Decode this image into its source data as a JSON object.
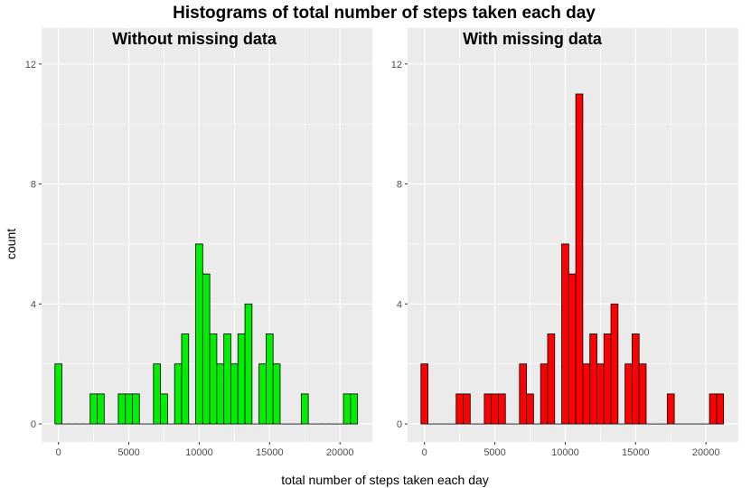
{
  "chart_data": {
    "type": "bar",
    "title": "Histograms of total number of steps taken each day",
    "xlabel": "total number of steps taken each day",
    "ylabel": "count",
    "bin_width": 500,
    "xlim": [
      -1200,
      22300
    ],
    "ylim": [
      -0.6,
      13.2
    ],
    "x_ticks": [
      0,
      5000,
      10000,
      15000,
      20000
    ],
    "y_ticks": [
      0,
      4,
      8,
      12
    ],
    "grid": true,
    "panels": [
      {
        "subtitle": "Without missing data",
        "fill": "#00ee00",
        "bins": [
          {
            "x": 0,
            "count": 2
          },
          {
            "x": 500,
            "count": 0
          },
          {
            "x": 1000,
            "count": 0
          },
          {
            "x": 1500,
            "count": 0
          },
          {
            "x": 2000,
            "count": 0
          },
          {
            "x": 2500,
            "count": 1
          },
          {
            "x": 3000,
            "count": 1
          },
          {
            "x": 3500,
            "count": 0
          },
          {
            "x": 4000,
            "count": 0
          },
          {
            "x": 4500,
            "count": 1
          },
          {
            "x": 5000,
            "count": 1
          },
          {
            "x": 5500,
            "count": 1
          },
          {
            "x": 6000,
            "count": 0
          },
          {
            "x": 6500,
            "count": 0
          },
          {
            "x": 7000,
            "count": 2
          },
          {
            "x": 7500,
            "count": 1
          },
          {
            "x": 8000,
            "count": 0
          },
          {
            "x": 8500,
            "count": 2
          },
          {
            "x": 9000,
            "count": 3
          },
          {
            "x": 9500,
            "count": 0
          },
          {
            "x": 10000,
            "count": 6
          },
          {
            "x": 10500,
            "count": 5
          },
          {
            "x": 11000,
            "count": 3
          },
          {
            "x": 11500,
            "count": 2
          },
          {
            "x": 12000,
            "count": 3
          },
          {
            "x": 12500,
            "count": 2
          },
          {
            "x": 13000,
            "count": 3
          },
          {
            "x": 13500,
            "count": 4
          },
          {
            "x": 14000,
            "count": 0
          },
          {
            "x": 14500,
            "count": 2
          },
          {
            "x": 15000,
            "count": 3
          },
          {
            "x": 15500,
            "count": 2
          },
          {
            "x": 16000,
            "count": 0
          },
          {
            "x": 16500,
            "count": 0
          },
          {
            "x": 17000,
            "count": 0
          },
          {
            "x": 17500,
            "count": 1
          },
          {
            "x": 18000,
            "count": 0
          },
          {
            "x": 18500,
            "count": 0
          },
          {
            "x": 19000,
            "count": 0
          },
          {
            "x": 19500,
            "count": 0
          },
          {
            "x": 20000,
            "count": 0
          },
          {
            "x": 20500,
            "count": 1
          },
          {
            "x": 21000,
            "count": 1
          }
        ]
      },
      {
        "subtitle": "With missing data",
        "fill": "#ff0000",
        "bins": [
          {
            "x": 0,
            "count": 2
          },
          {
            "x": 500,
            "count": 0
          },
          {
            "x": 1000,
            "count": 0
          },
          {
            "x": 1500,
            "count": 0
          },
          {
            "x": 2000,
            "count": 0
          },
          {
            "x": 2500,
            "count": 1
          },
          {
            "x": 3000,
            "count": 1
          },
          {
            "x": 3500,
            "count": 0
          },
          {
            "x": 4000,
            "count": 0
          },
          {
            "x": 4500,
            "count": 1
          },
          {
            "x": 5000,
            "count": 1
          },
          {
            "x": 5500,
            "count": 1
          },
          {
            "x": 6000,
            "count": 0
          },
          {
            "x": 6500,
            "count": 0
          },
          {
            "x": 7000,
            "count": 2
          },
          {
            "x": 7500,
            "count": 1
          },
          {
            "x": 8000,
            "count": 0
          },
          {
            "x": 8500,
            "count": 2
          },
          {
            "x": 9000,
            "count": 3
          },
          {
            "x": 9500,
            "count": 0
          },
          {
            "x": 10000,
            "count": 6
          },
          {
            "x": 10500,
            "count": 5
          },
          {
            "x": 11000,
            "count": 11
          },
          {
            "x": 11500,
            "count": 2
          },
          {
            "x": 12000,
            "count": 3
          },
          {
            "x": 12500,
            "count": 2
          },
          {
            "x": 13000,
            "count": 3
          },
          {
            "x": 13500,
            "count": 4
          },
          {
            "x": 14000,
            "count": 0
          },
          {
            "x": 14500,
            "count": 2
          },
          {
            "x": 15000,
            "count": 3
          },
          {
            "x": 15500,
            "count": 2
          },
          {
            "x": 16000,
            "count": 0
          },
          {
            "x": 16500,
            "count": 0
          },
          {
            "x": 17000,
            "count": 0
          },
          {
            "x": 17500,
            "count": 1
          },
          {
            "x": 18000,
            "count": 0
          },
          {
            "x": 18500,
            "count": 0
          },
          {
            "x": 19000,
            "count": 0
          },
          {
            "x": 19500,
            "count": 0
          },
          {
            "x": 20000,
            "count": 0
          },
          {
            "x": 20500,
            "count": 1
          },
          {
            "x": 21000,
            "count": 1
          }
        ]
      }
    ]
  },
  "colors": {
    "panel_background": "#ebebeb",
    "grid": "#ffffff",
    "bar_outline": "#000000"
  }
}
